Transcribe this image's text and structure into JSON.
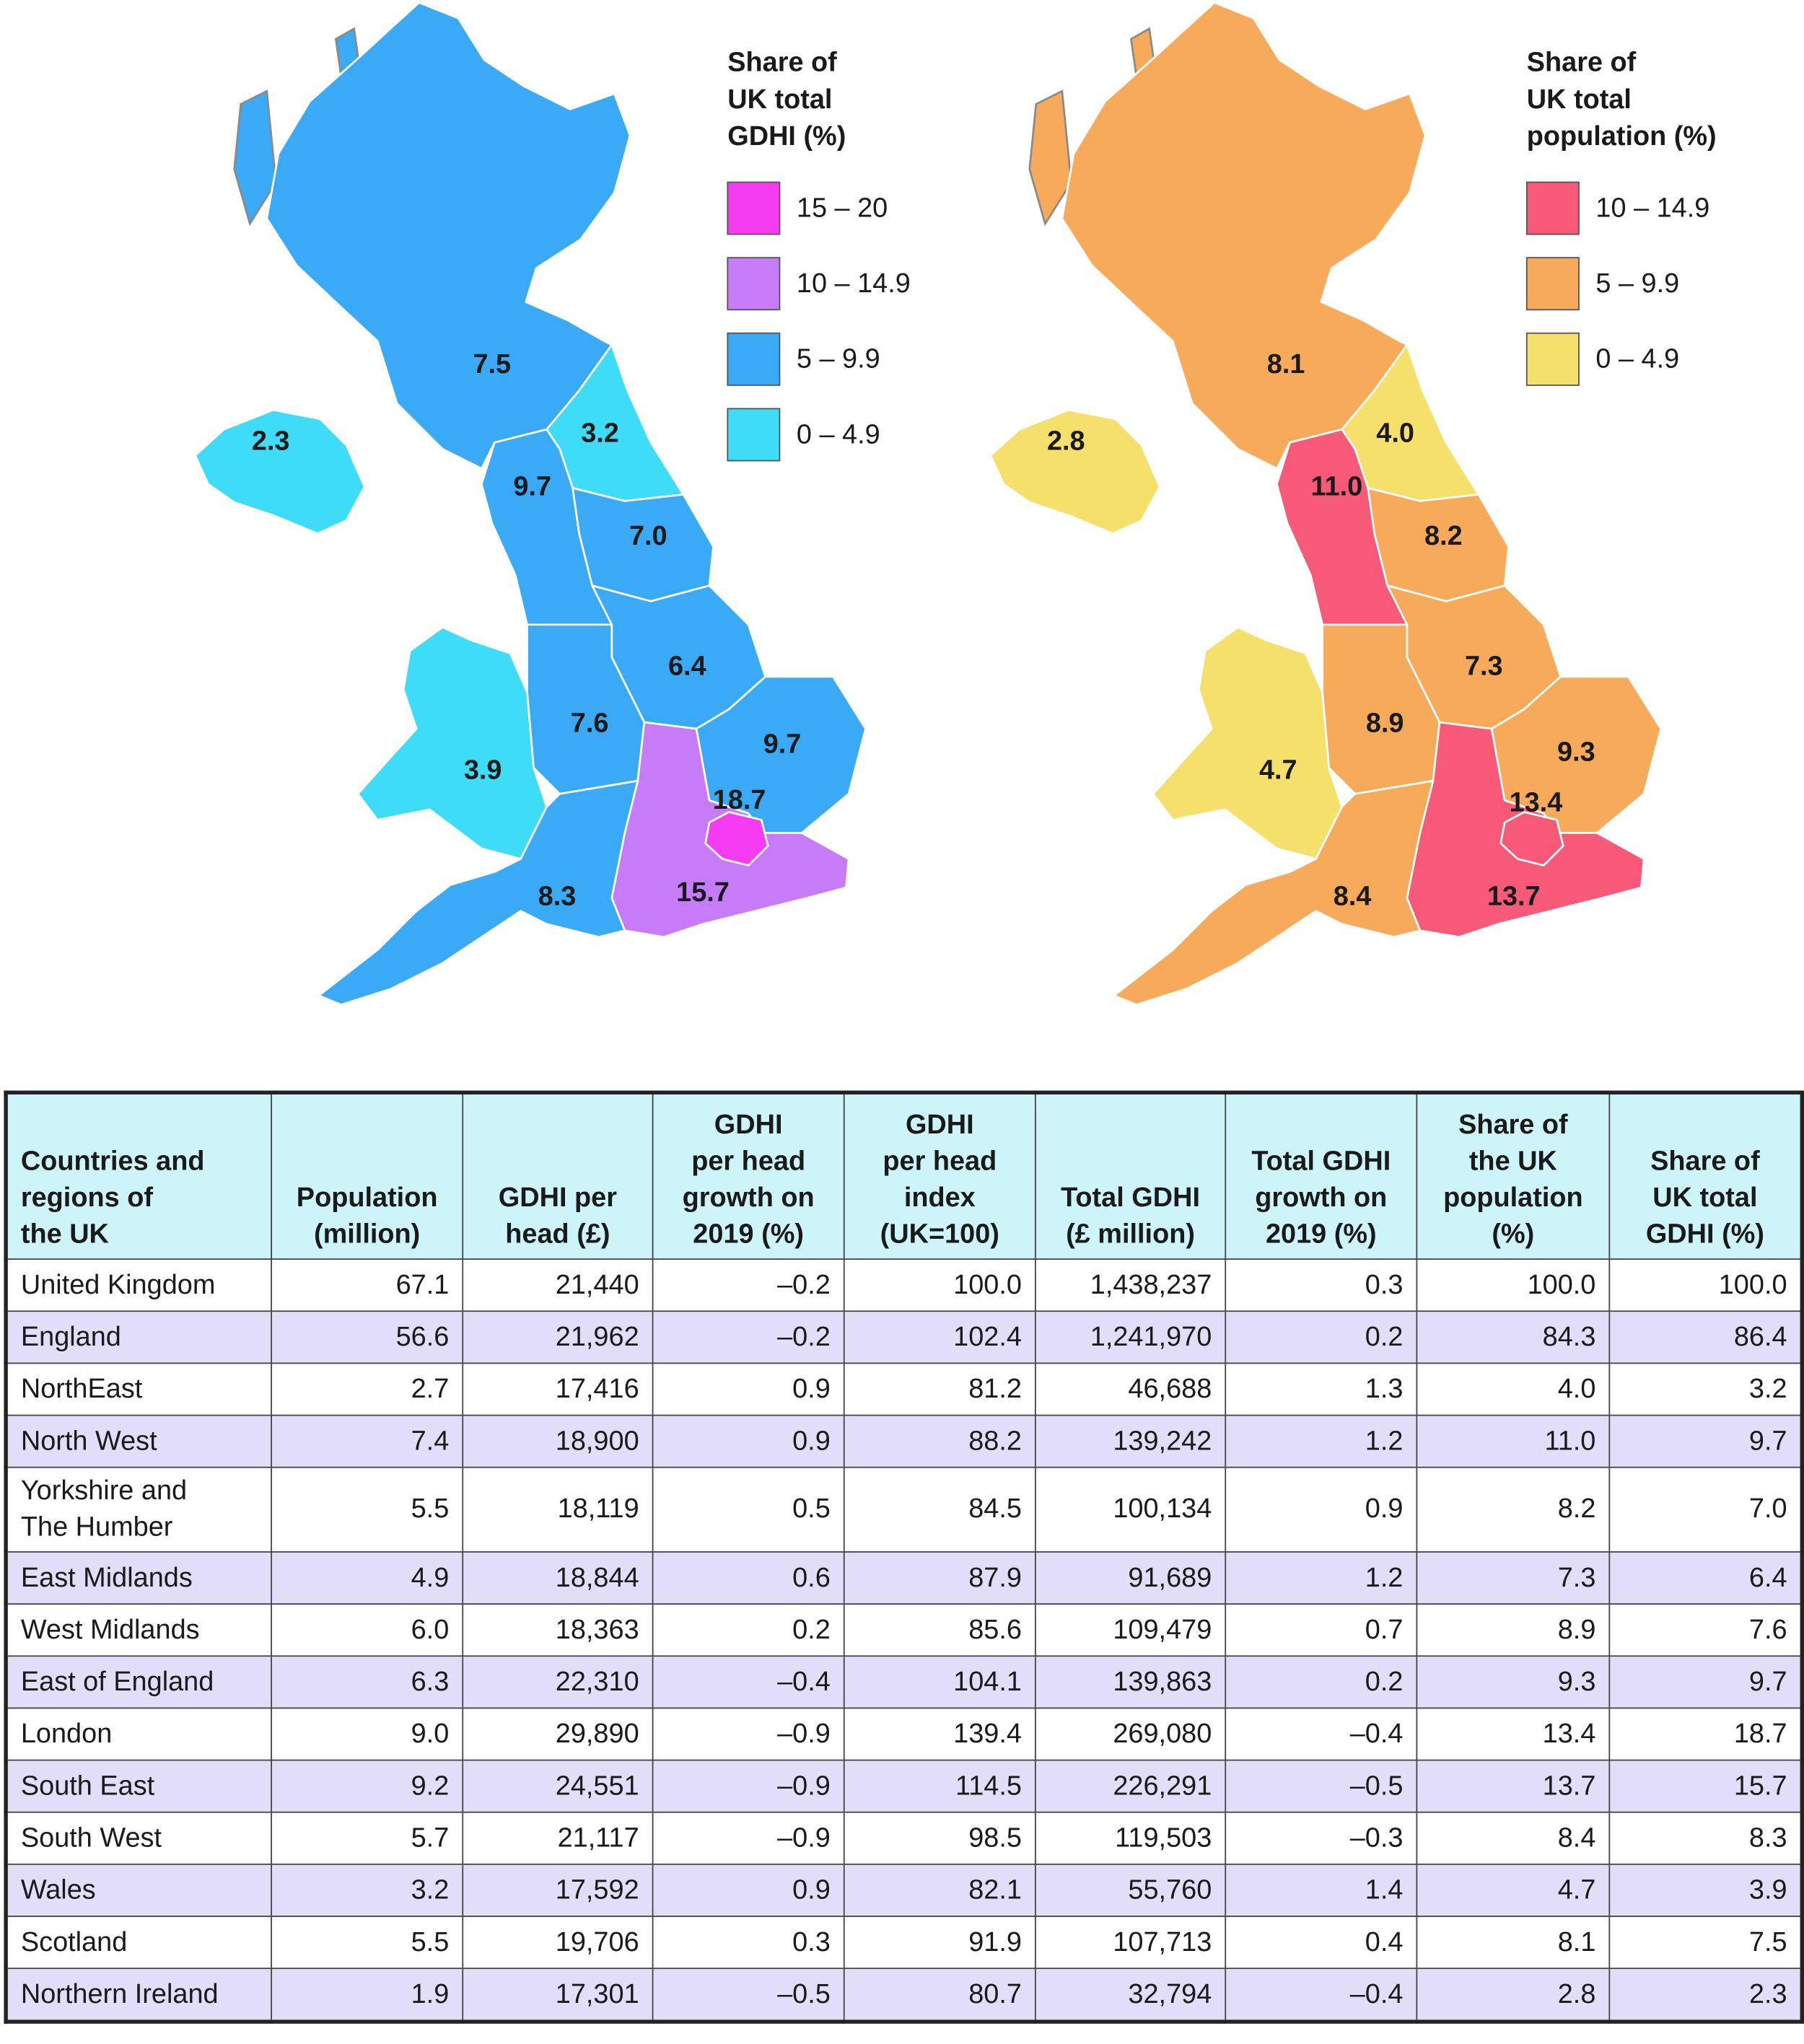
{
  "maps": [
    {
      "legend_title": [
        "Share of",
        "UK total",
        "GDHI (%)"
      ],
      "legend": [
        {
          "label": "15 – 20",
          "color": "#f53cf2"
        },
        {
          "label": "10 – 14.9",
          "color": "#c67bf8"
        },
        {
          "label": "5 – 9.9",
          "color": "#3aaaf6"
        },
        {
          "label": "0 – 4.9",
          "color": "#3fdcf7"
        }
      ],
      "regions": [
        {
          "value": "7.5",
          "color": "#3aaaf6"
        },
        {
          "value": "2.3",
          "color": "#3fdcf7"
        },
        {
          "value": "3.2",
          "color": "#3fdcf7"
        },
        {
          "value": "9.7",
          "color": "#3aaaf6"
        },
        {
          "value": "7.0",
          "color": "#3aaaf6"
        },
        {
          "value": "6.4",
          "color": "#3aaaf6"
        },
        {
          "value": "7.6",
          "color": "#3aaaf6"
        },
        {
          "value": "3.9",
          "color": "#3fdcf7"
        },
        {
          "value": "9.7",
          "color": "#3aaaf6"
        },
        {
          "value": "15.7",
          "color": "#c67bf8"
        },
        {
          "value": "18.7",
          "color": "#f53cf2"
        },
        {
          "value": "8.3",
          "color": "#3aaaf6"
        }
      ]
    },
    {
      "legend_title": [
        "Share of",
        "UK total",
        "population (%)"
      ],
      "legend": [
        {
          "label": "10 – 14.9",
          "color": "#f65a78"
        },
        {
          "label": "5 – 9.9",
          "color": "#f6aa5a"
        },
        {
          "label": "0 – 4.9",
          "color": "#f6e06c"
        }
      ],
      "regions": [
        {
          "value": "8.1",
          "color": "#f6aa5a"
        },
        {
          "value": "2.8",
          "color": "#f6e06c"
        },
        {
          "value": "4.0",
          "color": "#f6e06c"
        },
        {
          "value": "11.0",
          "color": "#f65a78"
        },
        {
          "value": "8.2",
          "color": "#f6aa5a"
        },
        {
          "value": "7.3",
          "color": "#f6aa5a"
        },
        {
          "value": "8.9",
          "color": "#f6aa5a"
        },
        {
          "value": "4.7",
          "color": "#f6e06c"
        },
        {
          "value": "9.3",
          "color": "#f6aa5a"
        },
        {
          "value": "13.7",
          "color": "#f65a78"
        },
        {
          "value": "13.4",
          "color": "#f65a78"
        },
        {
          "value": "8.4",
          "color": "#f6aa5a"
        }
      ]
    }
  ],
  "table": {
    "header": [
      "Countries and\nregions of\nthe UK",
      "Population\n(million)",
      "GDHI per\nhead (£)",
      "GDHI\nper head\ngrowth on\n2019 (%)",
      "GDHI\nper head\nindex\n(UK=100)",
      "Total GDHI\n(£ million)",
      "Total GDHI\ngrowth on\n2019 (%)",
      "Share of\nthe UK\npopulation\n(%)",
      "Share of\nUK total\nGDHI (%)"
    ],
    "rows": [
      [
        "United Kingdom",
        "67.1",
        "21,440",
        "–0.2",
        "100.0",
        "1,438,237",
        "0.3",
        "100.0",
        "100.0"
      ],
      [
        "England",
        "56.6",
        "21,962",
        "–0.2",
        "102.4",
        "1,241,970",
        "0.2",
        "84.3",
        "86.4"
      ],
      [
        "NorthEast",
        "2.7",
        "17,416",
        "0.9",
        "81.2",
        "46,688",
        "1.3",
        "4.0",
        "3.2"
      ],
      [
        "North West",
        "7.4",
        "18,900",
        "0.9",
        "88.2",
        "139,242",
        "1.2",
        "11.0",
        "9.7"
      ],
      [
        "Yorkshire and\nThe Humber",
        "5.5",
        "18,119",
        "0.5",
        "84.5",
        "100,134",
        "0.9",
        "8.2",
        "7.0"
      ],
      [
        "East Midlands",
        "4.9",
        "18,844",
        "0.6",
        "87.9",
        "91,689",
        "1.2",
        "7.3",
        "6.4"
      ],
      [
        "West Midlands",
        "6.0",
        "18,363",
        "0.2",
        "85.6",
        "109,479",
        "0.7",
        "8.9",
        "7.6"
      ],
      [
        "East of England",
        "6.3",
        "22,310",
        "–0.4",
        "104.1",
        "139,863",
        "0.2",
        "9.3",
        "9.7"
      ],
      [
        "London",
        "9.0",
        "29,890",
        "–0.9",
        "139.4",
        "269,080",
        "–0.4",
        "13.4",
        "18.7"
      ],
      [
        "South East",
        "9.2",
        "24,551",
        "–0.9",
        "114.5",
        "226,291",
        "–0.5",
        "13.7",
        "15.7"
      ],
      [
        "South West",
        "5.7",
        "21,117",
        "–0.9",
        "98.5",
        "119,503",
        "–0.3",
        "8.4",
        "8.3"
      ],
      [
        "Wales",
        "3.2",
        "17,592",
        "0.9",
        "82.1",
        "55,760",
        "1.4",
        "4.7",
        "3.9"
      ],
      [
        "Scotland",
        "5.5",
        "19,706",
        "0.3",
        "91.9",
        "107,713",
        "0.4",
        "8.1",
        "7.5"
      ],
      [
        "Northern Ireland",
        "1.9",
        "17,301",
        "–0.5",
        "80.7",
        "32,794",
        "–0.4",
        "2.8",
        "2.3"
      ]
    ]
  }
}
